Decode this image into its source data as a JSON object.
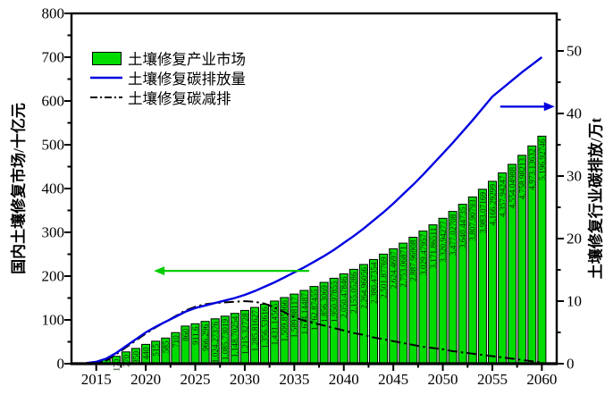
{
  "figure_type": "scientific bar-line combination chart",
  "colors": {
    "background": "#FFFFFF",
    "frame": "#000000",
    "bar_fill": "#00DC00",
    "bar_edge": "#000000",
    "bar_label": "#062800",
    "emission_line": "#0000E0",
    "reduction_line": "#000000"
  },
  "axes": {
    "x": {
      "range": [
        2012.5,
        2061.5
      ],
      "major_ticks": [
        2015,
        2020,
        2025,
        2030,
        2035,
        2040,
        2045,
        2050,
        2055,
        2060
      ]
    },
    "left": {
      "title": "国内土壤修复市场/十亿元",
      "range": [
        0,
        800
      ],
      "major_ticks": [
        0,
        100,
        200,
        300,
        400,
        500,
        600,
        700,
        800
      ]
    },
    "right": {
      "title": "土壤修复行业碳排放/万t",
      "range": [
        0,
        56
      ],
      "major_ticks": [
        0,
        10,
        20,
        30,
        40,
        50
      ]
    }
  },
  "legend": {
    "items": [
      {
        "label": "土壤修复产业市场",
        "marker": "bar",
        "color": "#00DC00"
      },
      {
        "label": "土壤修复碳排放量",
        "marker": "line",
        "color": "#0000E0"
      },
      {
        "label": "土壤修复碳减排",
        "marker": "dashdot",
        "color": "#000000"
      }
    ]
  },
  "annotations": {
    "green_arrow": {
      "meaning": "bars refer to left axis",
      "direction": "left",
      "y_left_value": 212,
      "from_year": 2021,
      "to_year": 2036.5,
      "color": "#00CC00"
    },
    "blue_arrow": {
      "meaning": "lines refer to right axis",
      "direction": "right",
      "y_right_value": 41.1,
      "from_year": 2055.8,
      "to_year": 2061.3,
      "color": "#0000E0"
    }
  },
  "chart_data": {
    "type": "bar+line",
    "x": [
      2014,
      2015,
      2016,
      2017,
      2018,
      2019,
      2020,
      2021,
      2022,
      2023,
      2024,
      2025,
      2026,
      2027,
      2028,
      2029,
      2030,
      2031,
      2032,
      2033,
      2034,
      2035,
      2036,
      2037,
      2038,
      2039,
      2040,
      2041,
      2042,
      2043,
      2044,
      2045,
      2046,
      2047,
      2048,
      2049,
      2050,
      2051,
      2052,
      2053,
      2054,
      2055,
      2056,
      2057,
      2058,
      2059,
      2060
    ],
    "series": [
      {
        "name": "土壤修复产业市场",
        "type": "bar",
        "axis": "left",
        "unit_note": "bar labels printed in 亿元; left axis in 十亿元 (axis value = label/10)",
        "values_yi_yuan": [
          20,
          30,
          90,
          170,
          270,
          350,
          440,
          515,
          585,
          710,
          860,
          911.6,
          966.296,
          1024.27376,
          1085.73019,
          1148.70254,
          1215.32728,
          1285.81627,
          1356.53616,
          1431.14565,
          1509.85866,
          1589.88117,
          1674.14487,
          1762.87455,
          1856.3069,
          1950.97855,
          2050.47846,
          2155.05286,
          2264.96056,
          2380.47354,
          2501.87769,
          2624.4697,
          2753.06871,
          2887.96908,
          3029.47957,
          3171.86511,
          3320.94277,
          3477.02708,
          3640.44735,
          3807.90793,
          3983.07169,
          4166.29299,
          4357.94247,
          4554.04988,
          4758.98213,
          4973.13632,
          5196.92746
        ],
        "bar_labels": [
          "",
          "",
          "",
          "170",
          "270",
          "350",
          "440",
          "515",
          "585",
          "710",
          "860",
          "911.6",
          "966.296",
          "1,024.27376",
          "1,085.73019",
          "1,148.70254",
          "1,215.32728",
          "1,285.81627",
          "1,356.53616",
          "1,431.14565",
          "1,509.85866",
          "1,589.88117",
          "1,674.14487",
          "1,762.87455",
          "1,856.3069",
          "1,950.97855",
          "2,050.47846",
          "2,155.05286",
          "2,264.96056",
          "2,380.47354",
          "2,501.87769",
          "2,624.4697",
          "2,753.06871",
          "2,887.96908",
          "3,029.47957",
          "3,171.86511",
          "3,320.94277",
          "3,477.02708",
          "3,640.44735",
          "3,807.90793",
          "3,983.07169",
          "4,166.29299",
          "4,357.94247",
          "4,554.04988",
          "4,758.98213",
          "4,973.13632",
          "5,196.92746"
        ]
      },
      {
        "name": "土壤修复碳排放量",
        "type": "line",
        "axis": "right",
        "unit": "万t",
        "values": [
          0.1,
          0.3,
          0.8,
          1.7,
          2.8,
          3.9,
          5.0,
          5.9,
          6.7,
          7.5,
          8.3,
          8.9,
          9.3,
          9.7,
          10.1,
          10.5,
          11.0,
          11.6,
          12.3,
          13.0,
          13.8,
          14.6,
          15.4,
          16.3,
          17.2,
          18.2,
          19.3,
          20.4,
          21.6,
          22.9,
          24.2,
          25.6,
          27.1,
          28.6,
          30.2,
          31.9,
          33.6,
          35.3,
          37.1,
          38.9,
          40.8,
          42.7,
          44.0,
          45.3,
          46.6,
          47.8,
          49.0
        ]
      },
      {
        "name": "土壤修复碳减排",
        "type": "dashdot_line",
        "axis": "right",
        "unit": "万t",
        "values": [
          0.05,
          0.15,
          0.5,
          1.5,
          2.6,
          3.7,
          4.8,
          5.8,
          6.7,
          7.6,
          8.5,
          9.1,
          9.5,
          9.7,
          9.8,
          9.9,
          10.0,
          9.9,
          9.6,
          9.0,
          8.2,
          7.4,
          6.9,
          6.5,
          6.1,
          5.7,
          5.3,
          4.9,
          4.6,
          4.2,
          3.9,
          3.6,
          3.3,
          3.0,
          2.7,
          2.5,
          2.3,
          2.0,
          1.8,
          1.6,
          1.4,
          1.2,
          1.0,
          0.8,
          0.6,
          0.4,
          0.2
        ]
      }
    ]
  }
}
